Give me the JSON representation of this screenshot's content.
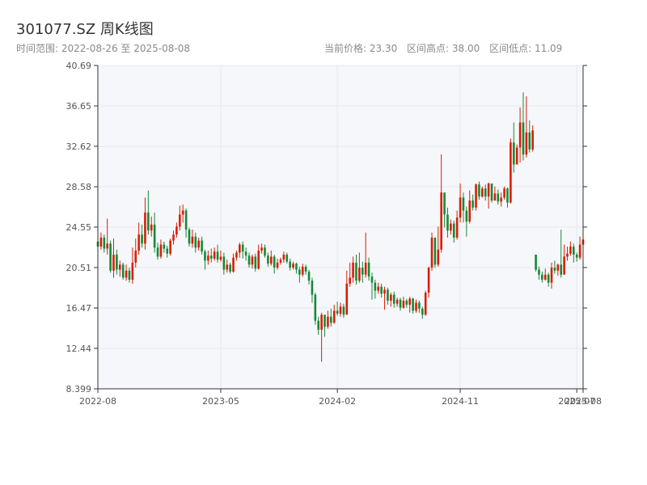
{
  "header": {
    "title": "301077.SZ 周K线图",
    "range_text": "时间范围: 2022-08-26 至 2025-08-08",
    "current_price_text": "当前价格: 23.30",
    "high_text": "区间高点: 38.00",
    "low_text": "区间低点: 11.09"
  },
  "colors": {
    "up": "#d81e06",
    "down": "#138a36",
    "grid": "#e6e9ef",
    "plot_bg": "#f6f7fa"
  },
  "chart_data": {
    "type": "candlestick",
    "title": "301077.SZ 周K线图",
    "y_ticks": [
      "8.399",
      "12.44",
      "16.47",
      "20.51",
      "24.55",
      "28.58",
      "32.62",
      "36.65",
      "40.69"
    ],
    "ylim": [
      8.399,
      40.69
    ],
    "x_ticks": [
      "2022-08",
      "2023-05",
      "2024-02",
      "2024-11",
      "2025-07",
      "2025-08"
    ],
    "xlim": [
      "2022-08-26",
      "2025-08-08"
    ],
    "grid": true,
    "candles": [
      [
        "2022-08-26",
        23.1,
        22.6,
        23.5,
        22.2
      ],
      [
        "2022-09-02",
        22.6,
        23.5,
        24.0,
        22.3
      ],
      [
        "2022-09-09",
        23.5,
        22.4,
        23.8,
        22.0
      ],
      [
        "2022-09-16",
        22.4,
        22.9,
        25.4,
        21.8
      ],
      [
        "2022-09-23",
        22.9,
        20.2,
        23.2,
        20.0
      ],
      [
        "2022-09-30",
        20.2,
        21.8,
        23.4,
        19.5
      ],
      [
        "2022-10-07",
        21.8,
        20.3,
        22.3,
        19.8
      ],
      [
        "2022-10-14",
        20.3,
        20.8,
        21.2,
        19.6
      ],
      [
        "2022-10-21",
        20.8,
        19.5,
        21.0,
        19.3
      ],
      [
        "2022-10-28",
        19.5,
        20.2,
        20.8,
        19.2
      ],
      [
        "2022-11-04",
        20.2,
        19.3,
        20.5,
        19.0
      ],
      [
        "2022-11-11",
        19.3,
        21.0,
        22.5,
        18.9
      ],
      [
        "2022-11-18",
        21.0,
        22.2,
        23.4,
        20.5
      ],
      [
        "2022-11-25",
        22.2,
        23.8,
        25.0,
        21.8
      ],
      [
        "2022-12-02",
        23.8,
        22.9,
        24.8,
        22.5
      ],
      [
        "2022-12-09",
        22.9,
        26.0,
        27.5,
        22.3
      ],
      [
        "2022-12-16",
        26.0,
        24.2,
        28.2,
        23.8
      ],
      [
        "2022-12-23",
        24.2,
        24.8,
        25.6,
        23.6
      ],
      [
        "2022-12-30",
        24.8,
        22.5,
        26.0,
        22.0
      ],
      [
        "2023-01-06",
        22.5,
        21.6,
        23.0,
        21.3
      ],
      [
        "2023-01-13",
        21.6,
        22.8,
        23.3,
        21.4
      ],
      [
        "2023-01-20",
        22.8,
        22.4,
        23.1,
        22.0
      ],
      [
        "2023-01-27",
        22.4,
        21.9,
        22.7,
        21.5
      ],
      [
        "2023-02-03",
        21.9,
        23.2,
        23.4,
        21.7
      ],
      [
        "2023-02-10",
        23.2,
        23.8,
        24.2,
        22.8
      ],
      [
        "2023-02-17",
        23.8,
        24.6,
        25.0,
        23.5
      ],
      [
        "2023-02-24",
        24.6,
        25.8,
        26.7,
        24.2
      ],
      [
        "2023-03-03",
        25.8,
        26.2,
        26.8,
        25.0
      ],
      [
        "2023-03-10",
        26.2,
        24.3,
        26.4,
        23.5
      ],
      [
        "2023-03-17",
        24.3,
        22.9,
        24.5,
        22.6
      ],
      [
        "2023-03-24",
        22.9,
        23.6,
        24.3,
        22.5
      ],
      [
        "2023-03-31",
        23.6,
        22.5,
        24.0,
        22.0
      ],
      [
        "2023-04-07",
        22.5,
        23.2,
        23.5,
        22.2
      ],
      [
        "2023-04-14",
        23.2,
        22.1,
        23.6,
        21.8
      ],
      [
        "2023-04-21",
        22.1,
        21.2,
        22.3,
        20.3
      ],
      [
        "2023-04-28",
        21.2,
        21.7,
        22.2,
        20.8
      ],
      [
        "2023-05-05",
        21.7,
        21.4,
        22.4,
        21.0
      ],
      [
        "2023-05-12",
        21.4,
        22.1,
        22.5,
        21.2
      ],
      [
        "2023-05-19",
        22.1,
        21.3,
        22.8,
        21.0
      ],
      [
        "2023-05-26",
        21.3,
        21.6,
        22.2,
        21.1
      ],
      [
        "2023-06-02",
        21.6,
        20.3,
        22.0,
        19.8
      ],
      [
        "2023-06-09",
        20.3,
        20.8,
        21.3,
        20.0
      ],
      [
        "2023-06-16",
        20.8,
        20.1,
        21.0,
        19.9
      ],
      [
        "2023-06-23",
        20.1,
        21.5,
        21.9,
        20.0
      ],
      [
        "2023-06-30",
        21.5,
        22.0,
        22.2,
        21.2
      ],
      [
        "2023-07-07",
        22.0,
        22.8,
        23.0,
        21.5
      ],
      [
        "2023-07-14",
        22.8,
        22.1,
        23.1,
        21.4
      ],
      [
        "2023-07-21",
        22.1,
        21.7,
        22.5,
        21.2
      ],
      [
        "2023-07-28",
        21.7,
        20.8,
        22.0,
        20.5
      ],
      [
        "2023-08-04",
        20.8,
        21.6,
        21.8,
        20.4
      ],
      [
        "2023-08-11",
        21.6,
        20.4,
        21.9,
        20.1
      ],
      [
        "2023-08-18",
        20.4,
        22.2,
        22.8,
        20.3
      ],
      [
        "2023-08-25",
        22.2,
        22.5,
        22.9,
        21.9
      ],
      [
        "2023-09-01",
        22.5,
        21.7,
        22.8,
        21.5
      ],
      [
        "2023-09-08",
        21.7,
        20.9,
        22.0,
        20.6
      ],
      [
        "2023-09-15",
        20.9,
        21.6,
        22.2,
        20.7
      ],
      [
        "2023-09-22",
        21.6,
        20.5,
        21.8,
        19.9
      ],
      [
        "2023-09-29",
        20.5,
        21.0,
        21.4,
        20.3
      ],
      [
        "2023-10-06",
        21.0,
        21.3,
        21.5,
        20.8
      ],
      [
        "2023-10-13",
        21.3,
        21.8,
        22.1,
        21.0
      ],
      [
        "2023-10-20",
        21.8,
        21.1,
        22.0,
        20.9
      ],
      [
        "2023-10-27",
        21.1,
        20.5,
        21.4,
        20.2
      ],
      [
        "2023-11-03",
        20.5,
        20.9,
        21.1,
        20.3
      ],
      [
        "2023-11-10",
        20.9,
        20.3,
        21.0,
        19.9
      ],
      [
        "2023-11-17",
        20.3,
        19.8,
        20.6,
        19.0
      ],
      [
        "2023-11-24",
        19.8,
        20.6,
        20.9,
        19.6
      ],
      [
        "2023-12-01",
        20.6,
        20.1,
        20.8,
        19.8
      ],
      [
        "2023-12-08",
        20.1,
        19.2,
        20.3,
        18.8
      ],
      [
        "2023-12-15",
        19.2,
        17.8,
        19.5,
        17.0
      ],
      [
        "2023-12-22",
        17.8,
        15.2,
        18.0,
        14.8
      ],
      [
        "2023-12-29",
        15.2,
        14.3,
        15.6,
        13.8
      ],
      [
        "2024-01-05",
        14.3,
        15.8,
        16.0,
        11.1
      ],
      [
        "2024-01-12",
        15.8,
        14.6,
        15.7,
        13.6
      ],
      [
        "2024-01-19",
        14.6,
        15.6,
        16.2,
        14.4
      ],
      [
        "2024-01-26",
        15.6,
        15.0,
        16.4,
        14.6
      ],
      [
        "2024-02-02",
        15.0,
        16.2,
        16.8,
        14.9
      ],
      [
        "2024-02-09",
        16.2,
        15.9,
        17.1,
        15.7
      ],
      [
        "2024-02-16",
        15.9,
        16.6,
        17.0,
        15.6
      ],
      [
        "2024-02-23",
        16.6,
        15.8,
        16.9,
        15.5
      ],
      [
        "2024-03-01",
        15.8,
        18.9,
        20.2,
        15.9
      ],
      [
        "2024-03-08",
        18.9,
        19.5,
        21.0,
        18.6
      ],
      [
        "2024-03-15",
        19.5,
        21.0,
        21.6,
        19.0
      ],
      [
        "2024-03-22",
        21.0,
        19.2,
        21.8,
        18.8
      ],
      [
        "2024-03-29",
        19.2,
        20.5,
        22.0,
        19.0
      ],
      [
        "2024-04-05",
        20.5,
        19.8,
        21.1,
        19.0
      ],
      [
        "2024-04-12",
        19.8,
        21.0,
        24.0,
        19.5
      ],
      [
        "2024-04-19",
        21.0,
        19.6,
        21.5,
        19.2
      ],
      [
        "2024-04-26",
        19.6,
        19.0,
        20.0,
        17.3
      ],
      [
        "2024-05-03",
        19.0,
        18.2,
        19.3,
        17.4
      ],
      [
        "2024-05-10",
        18.2,
        18.6,
        19.0,
        17.9
      ],
      [
        "2024-05-17",
        18.6,
        17.9,
        18.9,
        17.5
      ],
      [
        "2024-05-24",
        17.9,
        18.3,
        18.6,
        16.3
      ],
      [
        "2024-05-31",
        18.3,
        17.2,
        18.5,
        16.8
      ],
      [
        "2024-06-07",
        17.2,
        17.8,
        18.0,
        16.6
      ],
      [
        "2024-06-14",
        17.8,
        16.9,
        18.1,
        16.5
      ],
      [
        "2024-06-21",
        16.9,
        17.3,
        17.5,
        16.6
      ],
      [
        "2024-06-28",
        17.3,
        16.5,
        17.5,
        16.2
      ],
      [
        "2024-07-05",
        16.5,
        17.2,
        17.6,
        16.4
      ],
      [
        "2024-07-12",
        17.2,
        16.8,
        17.4,
        16.5
      ],
      [
        "2024-07-19",
        16.8,
        17.4,
        17.6,
        16.0
      ],
      [
        "2024-07-26",
        17.4,
        16.2,
        17.5,
        15.9
      ],
      [
        "2024-08-02",
        16.2,
        17.0,
        17.3,
        16.0
      ],
      [
        "2024-08-09",
        17.0,
        16.4,
        17.2,
        16.0
      ],
      [
        "2024-08-16",
        16.4,
        15.8,
        16.6,
        15.4
      ],
      [
        "2024-08-23",
        15.8,
        18.0,
        18.2,
        15.7
      ],
      [
        "2024-08-30",
        18.0,
        20.5,
        20.6,
        17.5
      ],
      [
        "2024-09-06",
        20.5,
        23.5,
        24.0,
        20.2
      ],
      [
        "2024-09-13",
        23.5,
        20.8,
        22.5,
        20.5
      ],
      [
        "2024-09-20",
        20.8,
        22.3,
        24.6,
        20.6
      ],
      [
        "2024-09-27",
        22.3,
        28.0,
        31.8,
        22.0
      ],
      [
        "2024-10-04",
        28.0,
        25.8,
        27.6,
        24.5
      ],
      [
        "2024-10-11",
        25.8,
        24.2,
        26.5,
        23.5
      ],
      [
        "2024-10-18",
        24.2,
        24.9,
        25.3,
        23.8
      ],
      [
        "2024-10-25",
        24.9,
        23.5,
        25.2,
        23.0
      ],
      [
        "2024-11-01",
        23.5,
        25.5,
        26.2,
        23.3
      ],
      [
        "2024-11-08",
        25.5,
        27.5,
        28.9,
        25.0
      ],
      [
        "2024-11-15",
        27.5,
        26.2,
        28.0,
        25.0
      ],
      [
        "2024-11-22",
        26.2,
        25.1,
        26.6,
        23.6
      ],
      [
        "2024-11-29",
        25.1,
        27.2,
        28.2,
        24.9
      ],
      [
        "2024-12-06",
        27.2,
        26.5,
        27.8,
        26.2
      ],
      [
        "2024-12-13",
        26.5,
        28.8,
        28.9,
        26.2
      ],
      [
        "2024-12-20",
        28.8,
        27.6,
        29.1,
        27.3
      ],
      [
        "2024-12-27",
        27.6,
        28.4,
        28.6,
        27.5
      ],
      [
        "2025-01-03",
        28.4,
        27.6,
        28.8,
        27.2
      ],
      [
        "2025-01-10",
        27.6,
        28.9,
        29.0,
        26.4
      ],
      [
        "2025-01-17",
        28.9,
        27.2,
        28.5,
        27.0
      ],
      [
        "2025-01-24",
        27.2,
        27.9,
        28.6,
        27.2
      ],
      [
        "2025-01-31",
        27.9,
        27.1,
        28.3,
        26.8
      ],
      [
        "2025-02-07",
        27.1,
        27.5,
        28.0,
        26.6
      ],
      [
        "2025-02-14",
        27.5,
        28.4,
        28.6,
        27.3
      ],
      [
        "2025-02-21",
        28.4,
        27.0,
        28.5,
        26.5
      ],
      [
        "2025-02-28",
        27.0,
        33.0,
        33.4,
        26.9
      ],
      [
        "2025-03-07",
        33.0,
        30.8,
        35.0,
        30.0
      ],
      [
        "2025-03-14",
        30.8,
        32.5,
        32.8,
        31.2
      ],
      [
        "2025-03-21",
        32.5,
        35.0,
        36.5,
        31.0
      ],
      [
        "2025-03-28",
        35.0,
        31.8,
        38.0,
        31.2
      ],
      [
        "2025-04-04",
        31.8,
        34.0,
        37.6,
        31.5
      ],
      [
        "2025-04-11",
        34.0,
        32.3,
        35.2,
        32.0
      ],
      [
        "2025-04-18",
        32.3,
        34.2,
        34.7,
        32.1
      ],
      [
        "2025-04-25",
        21.8,
        20.3,
        21.8,
        20.1
      ],
      [
        "2025-05-02",
        20.3,
        19.8,
        20.6,
        19.3
      ],
      [
        "2025-05-09",
        19.8,
        19.3,
        20.1,
        19.0
      ],
      [
        "2025-05-16",
        19.3,
        19.8,
        20.4,
        19.2
      ],
      [
        "2025-05-23",
        19.8,
        19.0,
        20.0,
        18.6
      ],
      [
        "2025-05-30",
        19.0,
        20.5,
        21.0,
        18.4
      ],
      [
        "2025-06-06",
        20.5,
        20.2,
        21.2,
        19.9
      ],
      [
        "2025-06-13",
        20.2,
        20.8,
        20.9,
        19.7
      ],
      [
        "2025-06-20",
        20.8,
        19.8,
        24.3,
        19.5
      ],
      [
        "2025-06-27",
        19.8,
        21.6,
        22.8,
        21.4
      ],
      [
        "2025-07-04",
        21.6,
        21.9,
        22.6,
        21.2
      ],
      [
        "2025-07-11",
        21.9,
        22.6,
        23.1,
        21.7
      ],
      [
        "2025-07-18",
        22.6,
        21.8,
        22.9,
        21.0
      ],
      [
        "2025-07-25",
        21.8,
        21.5,
        22.0,
        21.1
      ],
      [
        "2025-08-01",
        21.5,
        22.8,
        23.6,
        21.3
      ],
      [
        "2025-08-08",
        22.8,
        23.3,
        23.9,
        22.5
      ]
    ]
  }
}
